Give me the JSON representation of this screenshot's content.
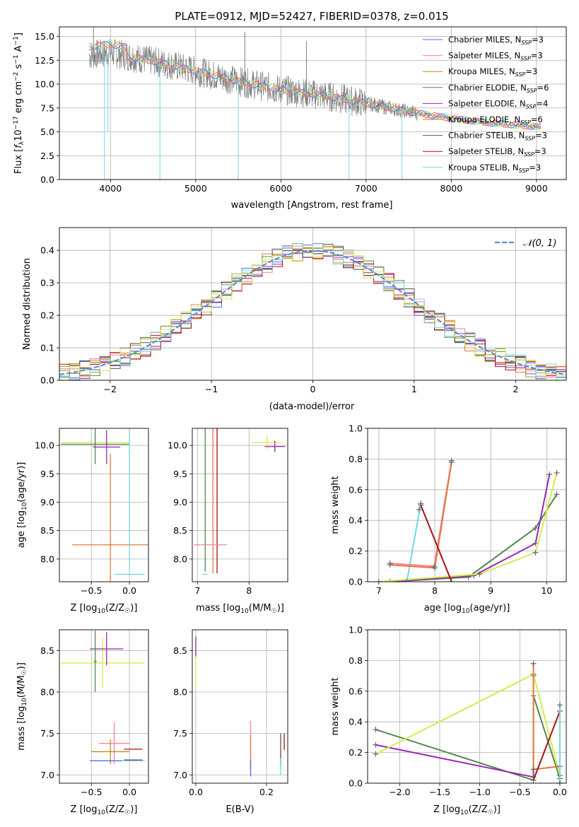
{
  "colors": {
    "Chabrier MILES": "#4c72e8",
    "Salpeter MILES": "#ff7f9f",
    "Kroupa MILES": "#c08a1e",
    "Chabrier ELODIE": "#4f8a4f",
    "Salpeter ELODIE": "#9b27b0",
    "Kroupa ELODIE": "#e07a3c",
    "Chabrier STELIB": "#555555",
    "Salpeter STELIB": "#aa1111",
    "Kroupa STELIB": "#74d7e0",
    "yellow-green": "#d4ec4a",
    "normal": "#5b8fd6",
    "data": "#808080"
  },
  "chart_data": [
    {
      "id": "spectrum",
      "type": "line",
      "title": "PLATE=0912, MJD=52427, FIBERID=0378, z=0.015",
      "xlabel": "wavelength [Angstrom, rest frame]",
      "ylabel": "Flux [fλ10⁻¹⁷ erg cm⁻² s⁻¹ A⁻¹]",
      "xlim": [
        3400,
        9350
      ],
      "ylim": [
        0,
        16
      ],
      "xticks": [
        4000,
        5000,
        6000,
        7000,
        8000,
        9000
      ],
      "yticks": [
        0.0,
        2.5,
        5.0,
        7.5,
        10.0,
        12.5,
        15.0
      ],
      "legend_position": "top-right",
      "legend": [
        {
          "label": "Chabrier MILES, N",
          "sub": "SSP",
          "tail": "=3",
          "color_key": "Chabrier MILES"
        },
        {
          "label": "Salpeter MILES, N",
          "sub": "SSP",
          "tail": "=3",
          "color_key": "Salpeter MILES"
        },
        {
          "label": "Kroupa MILES, N",
          "sub": "SSP",
          "tail": "=3",
          "color_key": "Kroupa MILES"
        },
        {
          "label": "Chabrier ELODIE, N",
          "sub": "SSP",
          "tail": "=6",
          "color_key": "Chabrier ELODIE"
        },
        {
          "label": "Salpeter ELODIE, N",
          "sub": "SSP",
          "tail": "=4",
          "color_key": "Salpeter ELODIE"
        },
        {
          "label": "Kroupa ELODIE, N",
          "sub": "SSP",
          "tail": "=6",
          "color_key": "Kroupa ELODIE"
        },
        {
          "label": "Chabrier STELIB, N",
          "sub": "SSP",
          "tail": "=3",
          "color_key": "Chabrier STELIB"
        },
        {
          "label": "Salpeter STELIB, N",
          "sub": "SSP",
          "tail": "=3",
          "color_key": "Salpeter STELIB"
        },
        {
          "label": "Kroupa STELIB, N",
          "sub": "SSP",
          "tail": "=3",
          "color_key": "Kroupa STELIB"
        }
      ],
      "continuum": {
        "x": [
          3750,
          4000,
          4500,
          5000,
          5500,
          6000,
          6500,
          7000,
          7500,
          8000,
          8500,
          9050
        ],
        "y": [
          13.0,
          13.3,
          12.4,
          11.4,
          10.3,
          9.4,
          8.8,
          8.0,
          7.1,
          6.4,
          5.9,
          5.5
        ]
      },
      "spikes": [
        {
          "x": 3930,
          "y": 0.0
        },
        {
          "x": 3970,
          "y": 5.0
        },
        {
          "x": 4580,
          "y": 0.0
        },
        {
          "x": 5500,
          "y": 0.0
        },
        {
          "x": 6800,
          "y": 0.0
        },
        {
          "x": 7420,
          "y": 0.0
        },
        {
          "x": 5577,
          "y": 15.5
        },
        {
          "x": 6300,
          "y": 14.5
        },
        {
          "x": 3800,
          "y": 16
        }
      ]
    },
    {
      "id": "residuals",
      "type": "histogram",
      "xlabel": "(data-model)/error",
      "ylabel": "Normed distribution",
      "xlim": [
        -2.5,
        2.5
      ],
      "ylim": [
        0,
        0.47
      ],
      "xticks": [
        -2,
        -1,
        0,
        1,
        2
      ],
      "yticks": [
        0.0,
        0.1,
        0.2,
        0.3,
        0.4
      ],
      "bin_width": 0.1,
      "legend": [
        {
          "label": "𝒩(0, 1)",
          "color_key": "normal",
          "style": "dashed"
        }
      ],
      "legend_position": "top-right"
    },
    {
      "id": "age-vs-Z",
      "type": "scatter",
      "xlabel": "Z [log₁₀(Z/Z☉)]",
      "ylabel": "age  [log₁₀(age/yr)]",
      "xlim": [
        -0.92,
        0.25
      ],
      "ylim": [
        7.6,
        10.3
      ],
      "xticks": [
        -0.5,
        0.0
      ],
      "yticks": [
        8.0,
        8.5,
        9.0,
        9.5,
        10.0
      ],
      "points": [
        {
          "x": -0.45,
          "y": 10.05,
          "xerr": 0.45,
          "yerr": 0.12,
          "c": "yellow-green"
        },
        {
          "x": -0.45,
          "y": 10.02,
          "xerr": 0.45,
          "yerr": 0.35,
          "c": "Chabrier ELODIE"
        },
        {
          "x": -0.3,
          "y": 9.97,
          "xerr": 0.18,
          "yerr": 0.3,
          "c": "Salpeter ELODIE"
        },
        {
          "x": -0.25,
          "y": 8.25,
          "xerr": 0.5,
          "yerr": 0.01,
          "c": "Kroupa ELODIE"
        },
        {
          "x": -0.25,
          "y": 8.25,
          "xerr": 0.02,
          "yerr": 1.6,
          "c": "Kroupa ELODIE"
        },
        {
          "x": 0.0,
          "y": 9.87,
          "xerr": 0.01,
          "yerr": 2.1,
          "c": "Kroupa STELIB"
        },
        {
          "x": 0.0,
          "y": 7.73,
          "xerr": 0.2,
          "yerr": 0.0,
          "c": "Kroupa STELIB"
        }
      ]
    },
    {
      "id": "age-vs-mass",
      "type": "scatter",
      "xlabel": "mass [log₁₀(M/M☉)]",
      "ylabel": "",
      "xlim": [
        6.9,
        8.75
      ],
      "ylim": [
        7.6,
        10.3
      ],
      "xticks": [
        7,
        8
      ],
      "yticks": [
        8.0,
        8.5,
        9.0,
        9.5,
        10.0
      ],
      "points": [
        {
          "x": 8.35,
          "y": 10.05,
          "xerr": 0.3,
          "yerr": 0.12,
          "c": "yellow-green"
        },
        {
          "x": 8.5,
          "y": 9.98,
          "xerr": 0.2,
          "yerr": 0.1,
          "c": "Salpeter ELODIE"
        },
        {
          "x": 7.15,
          "y": 9.88,
          "xerr": 0.0,
          "yerr": 2.1,
          "c": "Chabrier ELODIE"
        },
        {
          "x": 7.3,
          "y": 9.85,
          "xerr": 0.0,
          "yerr": 2.1,
          "c": "Kroupa ELODIE"
        },
        {
          "x": 7.38,
          "y": 9.8,
          "xerr": 0.0,
          "yerr": 2.05,
          "c": "Salpeter STELIB"
        },
        {
          "x": 7.25,
          "y": 8.25,
          "xerr": 0.32,
          "yerr": 0.0,
          "c": "Salpeter MILES"
        },
        {
          "x": 7.15,
          "y": 7.73,
          "xerr": 0.05,
          "yerr": 0.0,
          "c": "Kroupa STELIB"
        }
      ]
    },
    {
      "id": "massweight-vs-age",
      "type": "line",
      "xlabel": "age  [log₁₀(age/yr)]",
      "ylabel": "mass weight",
      "xlim": [
        6.8,
        10.35
      ],
      "ylim": [
        0,
        1.0
      ],
      "xticks": [
        7,
        8,
        9,
        10
      ],
      "yticks": [
        0.0,
        0.2,
        0.4,
        0.6,
        0.8,
        1.0
      ],
      "series": [
        {
          "c": "Chabrier ELODIE",
          "x": [
            7.2,
            8.6,
            9.8,
            10.18
          ],
          "y": [
            0.0,
            0.03,
            0.35,
            0.57
          ]
        },
        {
          "c": "Salpeter ELODIE",
          "x": [
            7.2,
            8.7,
            9.8,
            10.05
          ],
          "y": [
            0.0,
            0.04,
            0.25,
            0.7
          ]
        },
        {
          "c": "yellow-green",
          "x": [
            7.0,
            8.8,
            9.8,
            10.18
          ],
          "y": [
            0.0,
            0.05,
            0.19,
            0.71
          ]
        },
        {
          "c": "Kroupa STELIB",
          "x": [
            7.5,
            7.75
          ],
          "y": [
            0.0,
            0.51
          ]
        },
        {
          "c": "Salpeter MILES",
          "x": [
            7.2,
            7.99,
            8.3
          ],
          "y": [
            0.12,
            0.1,
            0.79
          ]
        },
        {
          "c": "Kroupa ELODIE",
          "x": [
            7.2,
            8.0,
            8.3
          ],
          "y": [
            0.11,
            0.09,
            0.78
          ]
        },
        {
          "c": "Salpeter STELIB",
          "x": [
            7.75,
            8.3
          ],
          "y": [
            0.5,
            0.0
          ]
        },
        {
          "c": "Chabrier STELIB",
          "x": [
            7.72
          ],
          "y": [
            0.47
          ]
        }
      ]
    },
    {
      "id": "mass-vs-Z",
      "type": "scatter",
      "xlabel": "Z [log₁₀(Z/Z☉)]",
      "ylabel": "mass [log₁₀(M/M☉)]",
      "xlim": [
        -0.92,
        0.25
      ],
      "ylim": [
        6.9,
        8.75
      ],
      "xticks": [
        -0.5,
        0.0
      ],
      "yticks": [
        7.0,
        7.5,
        8.0,
        8.5
      ],
      "points": [
        {
          "x": -0.35,
          "y": 8.35,
          "xerr": 0.55,
          "yerr": 0.3,
          "c": "yellow-green"
        },
        {
          "x": -0.3,
          "y": 8.52,
          "xerr": 0.22,
          "yerr": 0.2,
          "c": "Salpeter ELODIE"
        },
        {
          "x": -0.45,
          "y": 8.37,
          "xerr": 0.02,
          "yerr": 0.37,
          "c": "Chabrier ELODIE"
        },
        {
          "x": -0.2,
          "y": 7.38,
          "xerr": 0.2,
          "yerr": 0.25,
          "c": "Salpeter MILES"
        },
        {
          "x": -0.25,
          "y": 7.28,
          "xerr": 0.25,
          "yerr": 0.15,
          "c": "Kroupa MILES"
        },
        {
          "x": -0.25,
          "y": 7.17,
          "xerr": 0.27,
          "yerr": 0.0,
          "c": "Chabrier MILES"
        },
        {
          "x": 0.05,
          "y": 7.31,
          "xerr": 0.12,
          "yerr": 0.0,
          "c": "Salpeter STELIB"
        },
        {
          "x": 0.05,
          "y": 7.17,
          "xerr": 0.15,
          "yerr": 0.0,
          "c": "Kroupa STELIB"
        },
        {
          "x": 0.05,
          "y": 7.18,
          "xerr": 0.12,
          "yerr": 0.0,
          "c": "Chabrier STELIB"
        }
      ]
    },
    {
      "id": "mass-vs-EBV",
      "type": "scatter",
      "xlabel": "E(B-V)",
      "ylabel": "",
      "xlim": [
        -0.01,
        0.26
      ],
      "ylim": [
        6.9,
        8.75
      ],
      "xticks": [
        0.0,
        0.2
      ],
      "yticks": [
        7.0,
        7.5,
        8.0,
        8.5
      ],
      "points": [
        {
          "x": 0.0,
          "y": 8.35,
          "xerr": 0.0,
          "yerr": 0.3,
          "c": "yellow-green"
        },
        {
          "x": 0.0,
          "y": 8.55,
          "xerr": 0.0,
          "yerr": 0.12,
          "c": "Salpeter ELODIE"
        },
        {
          "x": 0.155,
          "y": 7.35,
          "xerr": 0.0,
          "yerr": 0.3,
          "c": "Salpeter MILES"
        },
        {
          "x": 0.155,
          "y": 7.28,
          "xerr": 0.0,
          "yerr": 0.2,
          "c": "Kroupa ELODIE"
        },
        {
          "x": 0.155,
          "y": 7.08,
          "xerr": 0.0,
          "yerr": 0.1,
          "c": "Chabrier MILES"
        },
        {
          "x": 0.24,
          "y": 7.3,
          "xerr": 0.0,
          "yerr": 0.2,
          "c": "Chabrier STELIB"
        },
        {
          "x": 0.24,
          "y": 7.1,
          "xerr": 0.0,
          "yerr": 0.1,
          "c": "Kroupa STELIB"
        },
        {
          "x": 0.25,
          "y": 7.4,
          "xerr": 0.0,
          "yerr": 0.1,
          "c": "Salpeter STELIB"
        }
      ]
    },
    {
      "id": "massweight-vs-Z",
      "type": "line",
      "xlabel": "Z [log₁₀(Z/Z☉)]",
      "ylabel": "mass weight",
      "xlim": [
        -2.4,
        0.08
      ],
      "ylim": [
        0,
        1.0
      ],
      "xticks": [
        -2.0,
        -1.5,
        -1.0,
        -0.5,
        0.0
      ],
      "yticks": [
        0.0,
        0.2,
        0.4,
        0.6,
        0.8,
        1.0
      ],
      "series": [
        {
          "c": "Chabrier ELODIE",
          "x": [
            -2.3,
            -0.33,
            -0.33,
            0.0
          ],
          "y": [
            0.35,
            0.02,
            0.57,
            0.03
          ]
        },
        {
          "c": "Salpeter ELODIE",
          "x": [
            -2.3,
            -0.33,
            -0.33
          ],
          "y": [
            0.25,
            0.04,
            0.7
          ]
        },
        {
          "c": "yellow-green",
          "x": [
            -2.3,
            -0.33,
            0.0
          ],
          "y": [
            0.19,
            0.71,
            0.05
          ]
        },
        {
          "c": "Kroupa ELODIE",
          "x": [
            -0.33,
            -0.33,
            0.0,
            0.0
          ],
          "y": [
            0.78,
            0.09,
            0.11,
            0.0
          ]
        },
        {
          "c": "Salpeter STELIB",
          "x": [
            -0.33,
            0.0
          ],
          "y": [
            0.02,
            0.47
          ]
        },
        {
          "c": "Kroupa STELIB",
          "x": [
            0.0,
            0.0
          ],
          "y": [
            0.51,
            0.0
          ]
        }
      ]
    }
  ]
}
